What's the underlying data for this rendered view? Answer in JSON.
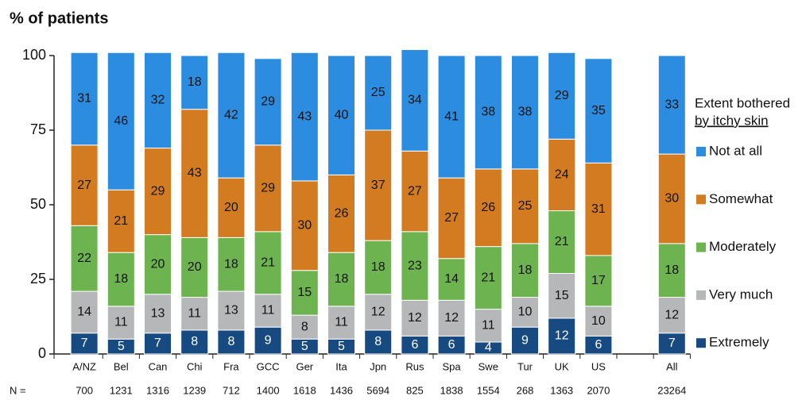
{
  "chart_data": {
    "type": "stacked_bar",
    "title": "% of patients",
    "categories": [
      "A/NZ",
      "Bel",
      "Can",
      "Chi",
      "Fra",
      "GCC",
      "Ger",
      "Ita",
      "Jpn",
      "Rus",
      "Spa",
      "Swe",
      "Tur",
      "UK",
      "US",
      null,
      "All"
    ],
    "n_label": "N =",
    "n": [
      700,
      1231,
      1316,
      1239,
      712,
      1400,
      1618,
      1436,
      5694,
      825,
      1838,
      1554,
      268,
      1363,
      2070,
      null,
      23264
    ],
    "ylim": [
      0,
      100
    ],
    "yticks": [
      0,
      25,
      50,
      75,
      100
    ],
    "grid": false,
    "legend_title": [
      "Extent bothered",
      "by itchy skin"
    ],
    "legend_position": "right",
    "series": [
      {
        "name": "Extremely",
        "color": "#164a80",
        "label_color": "#ffffff",
        "values": [
          7,
          5,
          7,
          8,
          8,
          9,
          5,
          5,
          8,
          6,
          6,
          4,
          9,
          12,
          6,
          null,
          7
        ]
      },
      {
        "name": "Very much",
        "color": "#b6b7b9",
        "label_color": "#111111",
        "values": [
          14,
          11,
          13,
          11,
          13,
          11,
          8,
          11,
          12,
          12,
          12,
          11,
          10,
          15,
          10,
          null,
          12
        ]
      },
      {
        "name": "Moderately",
        "color": "#6db34f",
        "label_color": "#111111",
        "values": [
          22,
          18,
          20,
          20,
          18,
          21,
          15,
          18,
          18,
          23,
          14,
          21,
          18,
          21,
          17,
          null,
          18
        ]
      },
      {
        "name": "Somewhat",
        "color": "#d27b20",
        "label_color": "#111111",
        "values": [
          27,
          21,
          29,
          43,
          20,
          29,
          30,
          26,
          37,
          27,
          27,
          26,
          25,
          24,
          31,
          null,
          30
        ]
      },
      {
        "name": "Not at all",
        "color": "#2b8ce0",
        "label_color": "#111111",
        "values": [
          31,
          46,
          32,
          18,
          42,
          29,
          43,
          40,
          25,
          34,
          41,
          38,
          38,
          29,
          35,
          null,
          33
        ]
      }
    ]
  }
}
